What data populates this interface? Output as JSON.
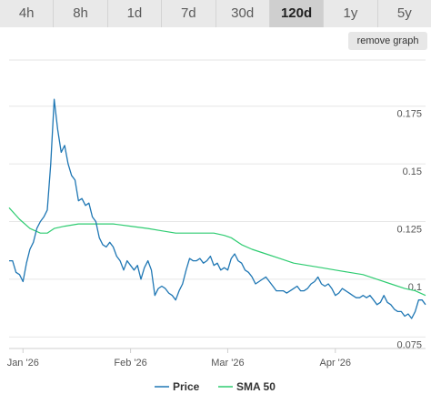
{
  "tabs": [
    {
      "label": "4h",
      "active": false
    },
    {
      "label": "8h",
      "active": false
    },
    {
      "label": "1d",
      "active": false
    },
    {
      "label": "7d",
      "active": false
    },
    {
      "label": "30d",
      "active": false
    },
    {
      "label": "120d",
      "active": true
    },
    {
      "label": "1y",
      "active": false
    },
    {
      "label": "5y",
      "active": false
    }
  ],
  "remove_graph_label": "remove graph",
  "chart_data": {
    "type": "line",
    "ylim": [
      0.07,
      0.195
    ],
    "y_ticks": [
      {
        "value": 0.075,
        "label": "0.075"
      },
      {
        "value": 0.1,
        "label": "0.1"
      },
      {
        "value": 0.125,
        "label": "0.125"
      },
      {
        "value": 0.15,
        "label": "0.15"
      },
      {
        "value": 0.175,
        "label": "0.175"
      }
    ],
    "x_range": [
      "2025-12-28",
      "2026-04-27"
    ],
    "x_ticks": [
      {
        "date": "2026-01-01",
        "label": "Jan '26"
      },
      {
        "date": "2026-02-01",
        "label": "Feb '26"
      },
      {
        "date": "2026-03-01",
        "label": "Mar '26"
      },
      {
        "date": "2026-04-01",
        "label": "Apr '26"
      }
    ],
    "grid": true,
    "legend_position": "bottom",
    "series": [
      {
        "name": "Price",
        "color": "#1f77b4",
        "points": [
          [
            "2025-12-28",
            0.108
          ],
          [
            "2025-12-29",
            0.108
          ],
          [
            "2025-12-30",
            0.103
          ],
          [
            "2025-12-31",
            0.102
          ],
          [
            "2026-01-01",
            0.099
          ],
          [
            "2026-01-02",
            0.107
          ],
          [
            "2026-01-03",
            0.113
          ],
          [
            "2026-01-04",
            0.116
          ],
          [
            "2026-01-05",
            0.122
          ],
          [
            "2026-01-06",
            0.125
          ],
          [
            "2026-01-07",
            0.127
          ],
          [
            "2026-01-08",
            0.13
          ],
          [
            "2026-01-09",
            0.15
          ],
          [
            "2026-01-10",
            0.178
          ],
          [
            "2026-01-11",
            0.165
          ],
          [
            "2026-01-12",
            0.155
          ],
          [
            "2026-01-13",
            0.158
          ],
          [
            "2026-01-14",
            0.15
          ],
          [
            "2026-01-15",
            0.145
          ],
          [
            "2026-01-16",
            0.143
          ],
          [
            "2026-01-17",
            0.134
          ],
          [
            "2026-01-18",
            0.135
          ],
          [
            "2026-01-19",
            0.132
          ],
          [
            "2026-01-20",
            0.133
          ],
          [
            "2026-01-21",
            0.127
          ],
          [
            "2026-01-22",
            0.125
          ],
          [
            "2026-01-23",
            0.118
          ],
          [
            "2026-01-24",
            0.115
          ],
          [
            "2026-01-25",
            0.114
          ],
          [
            "2026-01-26",
            0.116
          ],
          [
            "2026-01-27",
            0.114
          ],
          [
            "2026-01-28",
            0.11
          ],
          [
            "2026-01-29",
            0.108
          ],
          [
            "2026-01-30",
            0.104
          ],
          [
            "2026-01-31",
            0.108
          ],
          [
            "2026-02-01",
            0.106
          ],
          [
            "2026-02-02",
            0.104
          ],
          [
            "2026-02-03",
            0.106
          ],
          [
            "2026-02-04",
            0.1
          ],
          [
            "2026-02-05",
            0.105
          ],
          [
            "2026-02-06",
            0.108
          ],
          [
            "2026-02-07",
            0.104
          ],
          [
            "2026-02-08",
            0.093
          ],
          [
            "2026-02-09",
            0.096
          ],
          [
            "2026-02-10",
            0.097
          ],
          [
            "2026-02-11",
            0.096
          ],
          [
            "2026-02-12",
            0.094
          ],
          [
            "2026-02-13",
            0.093
          ],
          [
            "2026-02-14",
            0.091
          ],
          [
            "2026-02-15",
            0.095
          ],
          [
            "2026-02-16",
            0.098
          ],
          [
            "2026-02-17",
            0.104
          ],
          [
            "2026-02-18",
            0.109
          ],
          [
            "2026-02-19",
            0.108
          ],
          [
            "2026-02-20",
            0.108
          ],
          [
            "2026-02-21",
            0.109
          ],
          [
            "2026-02-22",
            0.107
          ],
          [
            "2026-02-23",
            0.108
          ],
          [
            "2026-02-24",
            0.11
          ],
          [
            "2026-02-25",
            0.106
          ],
          [
            "2026-02-26",
            0.107
          ],
          [
            "2026-02-27",
            0.104
          ],
          [
            "2026-02-28",
            0.105
          ],
          [
            "2026-03-01",
            0.104
          ],
          [
            "2026-03-02",
            0.109
          ],
          [
            "2026-03-03",
            0.111
          ],
          [
            "2026-03-04",
            0.108
          ],
          [
            "2026-03-05",
            0.107
          ],
          [
            "2026-03-06",
            0.104
          ],
          [
            "2026-03-07",
            0.103
          ],
          [
            "2026-03-08",
            0.101
          ],
          [
            "2026-03-09",
            0.098
          ],
          [
            "2026-03-10",
            0.099
          ],
          [
            "2026-03-11",
            0.1
          ],
          [
            "2026-03-12",
            0.101
          ],
          [
            "2026-03-13",
            0.099
          ],
          [
            "2026-03-14",
            0.097
          ],
          [
            "2026-03-15",
            0.095
          ],
          [
            "2026-03-16",
            0.095
          ],
          [
            "2026-03-17",
            0.095
          ],
          [
            "2026-03-18",
            0.094
          ],
          [
            "2026-03-19",
            0.095
          ],
          [
            "2026-03-20",
            0.096
          ],
          [
            "2026-03-21",
            0.097
          ],
          [
            "2026-03-22",
            0.095
          ],
          [
            "2026-03-23",
            0.095
          ],
          [
            "2026-03-24",
            0.096
          ],
          [
            "2026-03-25",
            0.098
          ],
          [
            "2026-03-26",
            0.099
          ],
          [
            "2026-03-27",
            0.101
          ],
          [
            "2026-03-28",
            0.098
          ],
          [
            "2026-03-29",
            0.097
          ],
          [
            "2026-03-30",
            0.098
          ],
          [
            "2026-03-31",
            0.096
          ],
          [
            "2026-04-01",
            0.093
          ],
          [
            "2026-04-02",
            0.094
          ],
          [
            "2026-04-03",
            0.096
          ],
          [
            "2026-04-04",
            0.095
          ],
          [
            "2026-04-05",
            0.094
          ],
          [
            "2026-04-06",
            0.093
          ],
          [
            "2026-04-07",
            0.092
          ],
          [
            "2026-04-08",
            0.092
          ],
          [
            "2026-04-09",
            0.093
          ],
          [
            "2026-04-10",
            0.092
          ],
          [
            "2026-04-11",
            0.093
          ],
          [
            "2026-04-12",
            0.091
          ],
          [
            "2026-04-13",
            0.089
          ],
          [
            "2026-04-14",
            0.09
          ],
          [
            "2026-04-15",
            0.093
          ],
          [
            "2026-04-16",
            0.09
          ],
          [
            "2026-04-17",
            0.089
          ],
          [
            "2026-04-18",
            0.087
          ],
          [
            "2026-04-19",
            0.086
          ],
          [
            "2026-04-20",
            0.086
          ],
          [
            "2026-04-21",
            0.084
          ],
          [
            "2026-04-22",
            0.085
          ],
          [
            "2026-04-23",
            0.083
          ],
          [
            "2026-04-24",
            0.086
          ],
          [
            "2026-04-25",
            0.091
          ],
          [
            "2026-04-26",
            0.091
          ],
          [
            "2026-04-27",
            0.089
          ]
        ]
      },
      {
        "name": "SMA 50",
        "color": "#2ecc71",
        "points": [
          [
            "2025-12-28",
            0.131
          ],
          [
            "2025-12-31",
            0.126
          ],
          [
            "2026-01-03",
            0.122
          ],
          [
            "2026-01-06",
            0.12
          ],
          [
            "2026-01-08",
            0.12
          ],
          [
            "2026-01-10",
            0.122
          ],
          [
            "2026-01-13",
            0.123
          ],
          [
            "2026-01-17",
            0.124
          ],
          [
            "2026-01-22",
            0.124
          ],
          [
            "2026-01-27",
            0.124
          ],
          [
            "2026-02-01",
            0.123
          ],
          [
            "2026-02-06",
            0.122
          ],
          [
            "2026-02-10",
            0.121
          ],
          [
            "2026-02-14",
            0.12
          ],
          [
            "2026-02-18",
            0.12
          ],
          [
            "2026-02-22",
            0.12
          ],
          [
            "2026-02-25",
            0.12
          ],
          [
            "2026-02-28",
            0.119
          ],
          [
            "2026-03-02",
            0.118
          ],
          [
            "2026-03-05",
            0.115
          ],
          [
            "2026-03-08",
            0.113
          ],
          [
            "2026-03-12",
            0.111
          ],
          [
            "2026-03-16",
            0.109
          ],
          [
            "2026-03-20",
            0.107
          ],
          [
            "2026-03-24",
            0.106
          ],
          [
            "2026-03-28",
            0.105
          ],
          [
            "2026-04-01",
            0.104
          ],
          [
            "2026-04-05",
            0.103
          ],
          [
            "2026-04-09",
            0.102
          ],
          [
            "2026-04-13",
            0.1
          ],
          [
            "2026-04-17",
            0.098
          ],
          [
            "2026-04-21",
            0.096
          ],
          [
            "2026-04-24",
            0.095
          ],
          [
            "2026-04-27",
            0.093
          ]
        ]
      }
    ]
  }
}
